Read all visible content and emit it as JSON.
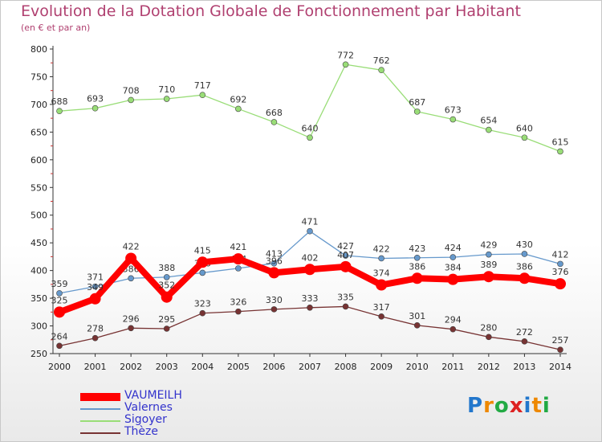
{
  "chart_data": {
    "type": "line",
    "title": "Evolution de la Dotation Globale de Fonctionnement par Habitant",
    "subtitle": "(en € et par an)",
    "x": [
      "2000",
      "2001",
      "2002",
      "2003",
      "2004",
      "2005",
      "2006",
      "2007",
      "2008",
      "2009",
      "2010",
      "2011",
      "2012",
      "2013",
      "2014"
    ],
    "ylim": [
      250,
      800
    ],
    "yticks": [
      250,
      300,
      350,
      400,
      450,
      500,
      550,
      600,
      650,
      700,
      750,
      800
    ],
    "grid": false,
    "legend_position": "bottom-left",
    "series": [
      {
        "name": "VAUMEILH",
        "color": "#ff0000",
        "values": [
          325,
          349,
          422,
          352,
          415,
          421,
          396,
          402,
          407,
          374,
          386,
          384,
          389,
          386,
          376
        ]
      },
      {
        "name": "Valernes",
        "color": "#6699cc",
        "values": [
          359,
          371,
          386,
          388,
          396,
          404,
          413,
          471,
          427,
          422,
          423,
          424,
          429,
          430,
          412
        ]
      },
      {
        "name": "Sigoyer",
        "color": "#99dd77",
        "values": [
          688,
          693,
          708,
          710,
          717,
          692,
          668,
          640,
          772,
          762,
          687,
          673,
          654,
          640,
          615
        ]
      },
      {
        "name": "Thèze",
        "color": "#773333",
        "values": [
          264,
          278,
          296,
          295,
          323,
          326,
          330,
          333,
          335,
          317,
          301,
          294,
          280,
          272,
          257
        ]
      }
    ]
  },
  "logo": {
    "text": "Proxiti",
    "colors": [
      "#2277cc",
      "#ee8800",
      "#22aa44",
      "#dd2222"
    ]
  }
}
